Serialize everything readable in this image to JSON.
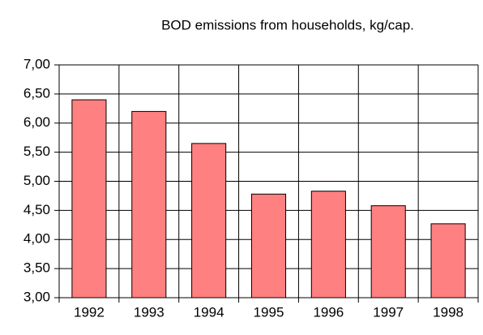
{
  "chart_data": {
    "type": "bar",
    "title": "BOD emissions from households, kg/cap.",
    "categories": [
      "1992",
      "1993",
      "1994",
      "1995",
      "1996",
      "1997",
      "1998"
    ],
    "values": [
      6.4,
      6.2,
      5.65,
      4.78,
      4.83,
      4.58,
      4.27
    ],
    "color": "#ff8080",
    "ylim": [
      3,
      7
    ],
    "yticks": [
      {
        "value": 3,
        "label": "3,00"
      },
      {
        "value": 3.5,
        "label": "3,50"
      },
      {
        "value": 4,
        "label": "4,00"
      },
      {
        "value": 4.5,
        "label": "4,50"
      },
      {
        "value": 5,
        "label": "5,00"
      },
      {
        "value": 5.5,
        "label": "5,50"
      },
      {
        "value": 6,
        "label": "6,00"
      },
      {
        "value": 6.5,
        "label": "6,50"
      },
      {
        "value": 7,
        "label": "7,00"
      }
    ],
    "grid": true
  }
}
